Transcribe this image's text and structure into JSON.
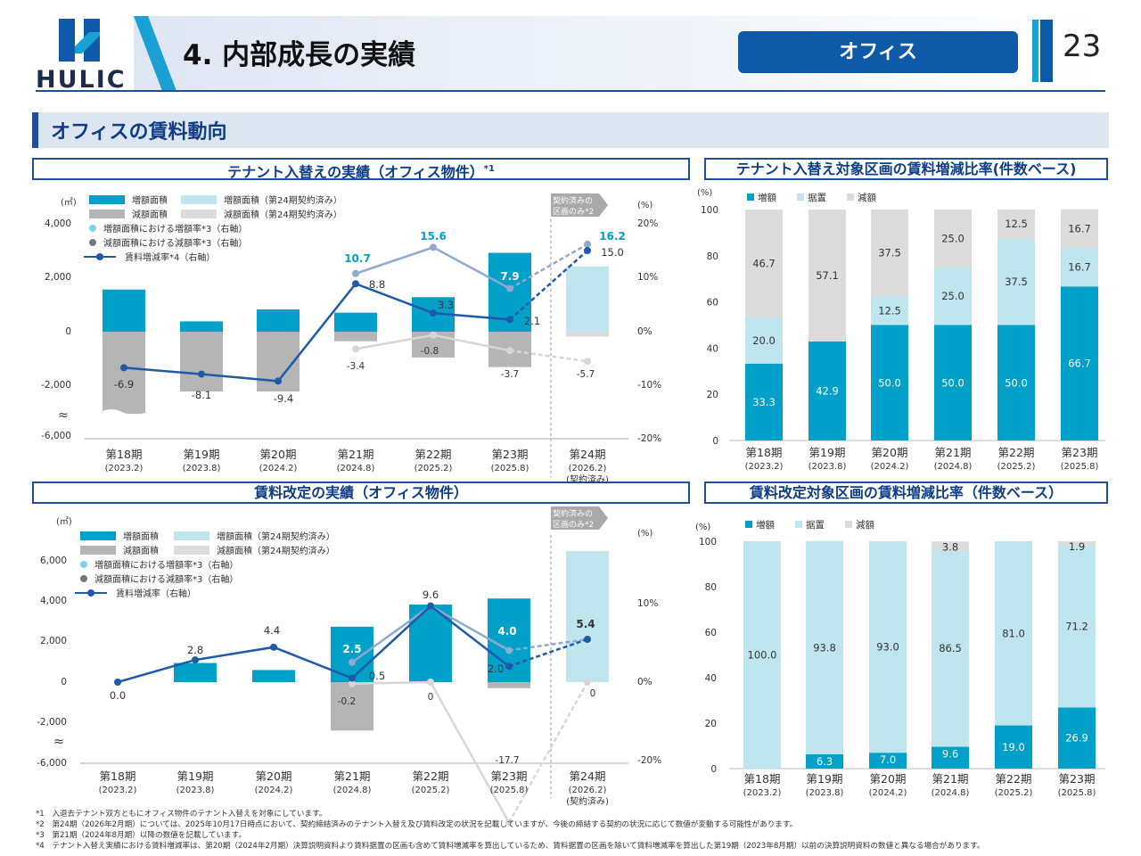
{
  "header": {
    "logo_text": "HULIC",
    "title": "4. 内部成長の実績",
    "section_tag": "オフィス",
    "page_number": "23"
  },
  "subheader": {
    "title": "オフィスの賃料動向"
  },
  "colors": {
    "primary": "#0f5aa8",
    "teal": "#00a0c8",
    "light_teal": "#bfe6ef",
    "gray": "#b5b5b5",
    "light_gray": "#dcdcdc",
    "line_dark": "#1f5aa8",
    "line_light": "#90a9d0"
  },
  "chart_data": [
    {
      "id": "tenant_replacement",
      "type": "bar",
      "title": "テナント入替えの実績（オフィス物件）",
      "title_note": "*1",
      "y_left_unit": "(㎡)",
      "y_right_unit": "(%)",
      "y_left_ticks": [
        "4,000",
        "2,000",
        "0",
        "-2,000",
        "-6,000"
      ],
      "y_right_ticks": [
        "20%",
        "10%",
        "0%",
        "-10%",
        "-20%"
      ],
      "break_symbol": "≈",
      "ylim_left": [
        -6000,
        4000
      ],
      "ylim_right": [
        -20,
        20
      ],
      "categories": [
        "第18期",
        "第19期",
        "第20期",
        "第21期",
        "第22期",
        "第23期",
        "第24期"
      ],
      "category_dates": [
        "(2023.2)",
        "(2023.8)",
        "(2024.2)",
        "(2024.8)",
        "(2025.2)",
        "(2025.8)",
        "(2026.2)"
      ],
      "contracted_note": "(契約済み)",
      "contracted_callout": "契約済みの区画のみ",
      "contracted_callout_note": "*2",
      "legend": [
        "増額面積",
        "増額面積（第24期契約済み）",
        "減額面積",
        "減額面積（第24期契約済み）",
        "増額面積における増額率*3（右軸）",
        "減額面積における減額率*3（右軸）",
        "賃料増減率*4（右軸）"
      ],
      "increase_area": [
        1550,
        380,
        820,
        700,
        1270,
        2900,
        2400
      ],
      "decrease_area": [
        -4000,
        -2200,
        -2200,
        -350,
        -950,
        -1300,
        -180
      ],
      "increase_rate": [
        null,
        null,
        null,
        10.7,
        15.6,
        7.9,
        16.2
      ],
      "increase_rate_labels": [
        "",
        "",
        "",
        "10.7",
        "15.6",
        "7.9",
        "16.2"
      ],
      "decrease_rate": [
        null,
        null,
        null,
        -3.4,
        -0.8,
        -3.7,
        -5.7
      ],
      "decrease_rate_labels": [
        "",
        "",
        "",
        "-3.4",
        "-0.8",
        "-3.7",
        "-5.7"
      ],
      "rent_change_rate": [
        -6.9,
        -8.1,
        -9.4,
        8.8,
        3.3,
        2.1,
        15.0
      ],
      "rent_change_labels": [
        "-6.9",
        "-8.1",
        "-9.4",
        "8.8",
        "3.3",
        "2.1",
        "15.0"
      ]
    },
    {
      "id": "tenant_replacement_ratio",
      "type": "bar",
      "stacked": true,
      "title": "テナント入替え対象区画の賃料増減比率(件数ベース)",
      "y_unit": "(%)",
      "y_ticks": [
        "100",
        "80",
        "60",
        "40",
        "20",
        "0"
      ],
      "ylim": [
        0,
        100
      ],
      "legend": [
        "増額",
        "据置",
        "減額"
      ],
      "categories": [
        "第18期",
        "第19期",
        "第20期",
        "第21期",
        "第22期",
        "第23期"
      ],
      "category_dates": [
        "(2023.2)",
        "(2023.8)",
        "(2024.2)",
        "(2024.8)",
        "(2025.2)",
        "(2025.8)"
      ],
      "series": [
        {
          "name": "増額",
          "values": [
            33.3,
            42.9,
            50.0,
            50.0,
            50.0,
            66.7
          ],
          "labels": [
            "33.3",
            "42.9",
            "50.0",
            "50.0",
            "50.0",
            "66.7"
          ]
        },
        {
          "name": "据置",
          "values": [
            20.0,
            0,
            12.5,
            25.0,
            37.5,
            16.7
          ],
          "labels": [
            "20.0",
            "",
            "12.5",
            "25.0",
            "37.5",
            "16.7"
          ]
        },
        {
          "name": "減額",
          "values": [
            46.7,
            57.1,
            37.5,
            25.0,
            12.5,
            16.7
          ],
          "labels": [
            "46.7",
            "57.1",
            "37.5",
            "25.0",
            "12.5",
            "16.7"
          ]
        }
      ]
    },
    {
      "id": "rent_revision",
      "type": "bar",
      "title": "賃料改定の実績（オフィス物件）",
      "y_left_unit": "(㎡)",
      "y_right_unit": "(%)",
      "y_left_ticks": [
        "6,000",
        "4,000",
        "2,000",
        "0",
        "-2,000",
        "-6,000"
      ],
      "y_right_ticks": [
        "10%",
        "0%",
        "-20%"
      ],
      "break_symbol": "≈",
      "ylim_left": [
        -6000,
        6000
      ],
      "ylim_right": [
        -20,
        20
      ],
      "categories": [
        "第18期",
        "第19期",
        "第20期",
        "第21期",
        "第22期",
        "第23期",
        "第24期"
      ],
      "category_dates": [
        "(2023.2)",
        "(2023.8)",
        "(2024.2)",
        "(2024.8)",
        "(2025.2)",
        "(2025.8)",
        "(2026.2)"
      ],
      "contracted_note": "(契約済み)",
      "contracted_callout": "契約済みの区画のみ",
      "contracted_callout_note": "*2",
      "legend": [
        "増額面積",
        "増額面積（第24期契約済み）",
        "減額面積",
        "減額面積（第24期契約済み）",
        "増額面積における増額率*3（右軸）",
        "減額面積における減額率*3（右軸）",
        "賃料増減率（右軸）"
      ],
      "increase_area": [
        0,
        950,
        600,
        2750,
        3850,
        4150,
        6500
      ],
      "decrease_area": [
        0,
        0,
        0,
        -2800,
        0,
        -300,
        0
      ],
      "increase_rate": [
        null,
        null,
        null,
        2.5,
        9.6,
        4.0,
        5.4
      ],
      "increase_rate_labels": [
        "",
        "",
        "",
        "2.5",
        "",
        "4.0",
        "5.4"
      ],
      "decrease_rate": [
        null,
        null,
        null,
        -0.2,
        0,
        -17.7,
        0
      ],
      "decrease_rate_labels": [
        "",
        "",
        "",
        "-0.2",
        "0",
        "-17.7",
        "0"
      ],
      "rent_change_rate": [
        0.0,
        2.8,
        4.4,
        0.5,
        9.6,
        2.0,
        5.4
      ],
      "rent_change_labels": [
        "0.0",
        "2.8",
        "4.4",
        "0.5",
        "9.6",
        "2.0",
        ""
      ]
    },
    {
      "id": "rent_revision_ratio",
      "type": "bar",
      "stacked": true,
      "title": "賃料改定対象区画の賃料増減比率（件数ベース）",
      "y_unit": "(%)",
      "y_ticks": [
        "100",
        "80",
        "60",
        "40",
        "20",
        "0"
      ],
      "ylim": [
        0,
        100
      ],
      "legend": [
        "増額",
        "据置",
        "減額"
      ],
      "categories": [
        "第18期",
        "第19期",
        "第20期",
        "第21期",
        "第22期",
        "第23期"
      ],
      "category_dates": [
        "(2023.2)",
        "(2023.8)",
        "(2024.2)",
        "(2024.8)",
        "(2025.2)",
        "(2025.8)"
      ],
      "series": [
        {
          "name": "増額",
          "values": [
            0,
            6.3,
            7.0,
            9.6,
            19.0,
            26.9
          ],
          "labels": [
            "",
            "6.3",
            "7.0",
            "9.6",
            "19.0",
            "26.9"
          ]
        },
        {
          "name": "据置",
          "values": [
            100.0,
            93.8,
            93.0,
            86.5,
            81.0,
            71.2
          ],
          "labels": [
            "100.0",
            "93.8",
            "93.0",
            "86.5",
            "81.0",
            "71.2"
          ]
        },
        {
          "name": "減額",
          "values": [
            0,
            0,
            0,
            3.8,
            0,
            1.9
          ],
          "labels": [
            "",
            "",
            "",
            "3.8",
            "",
            "1.9"
          ]
        }
      ]
    }
  ],
  "footnotes": [
    "*1　入退去テナント双方ともにオフィス物件のテナント入替えを対象にしています。",
    "*2　第24期（2026年2月期）については、2025年10月17日時点において、契約締結済みのテナント入替え及び賃料改定の状況を記載していますが、今後の締結する契約の状況に応じて数値が変動する可能性があります。",
    "*3　第21期（2024年8月期）以降の数値を記載しています。",
    "*4　テナント入替え実績における賃料増減率は、第20期（2024年2月期）決算説明資料より賃料据置の区画も含めて賃料増減率を算出しているため、賃料据置の区画を除いて賃料増減率を算出した第19期（2023年8月期）以前の決算説明資料の数値と異なる場合があります。"
  ]
}
